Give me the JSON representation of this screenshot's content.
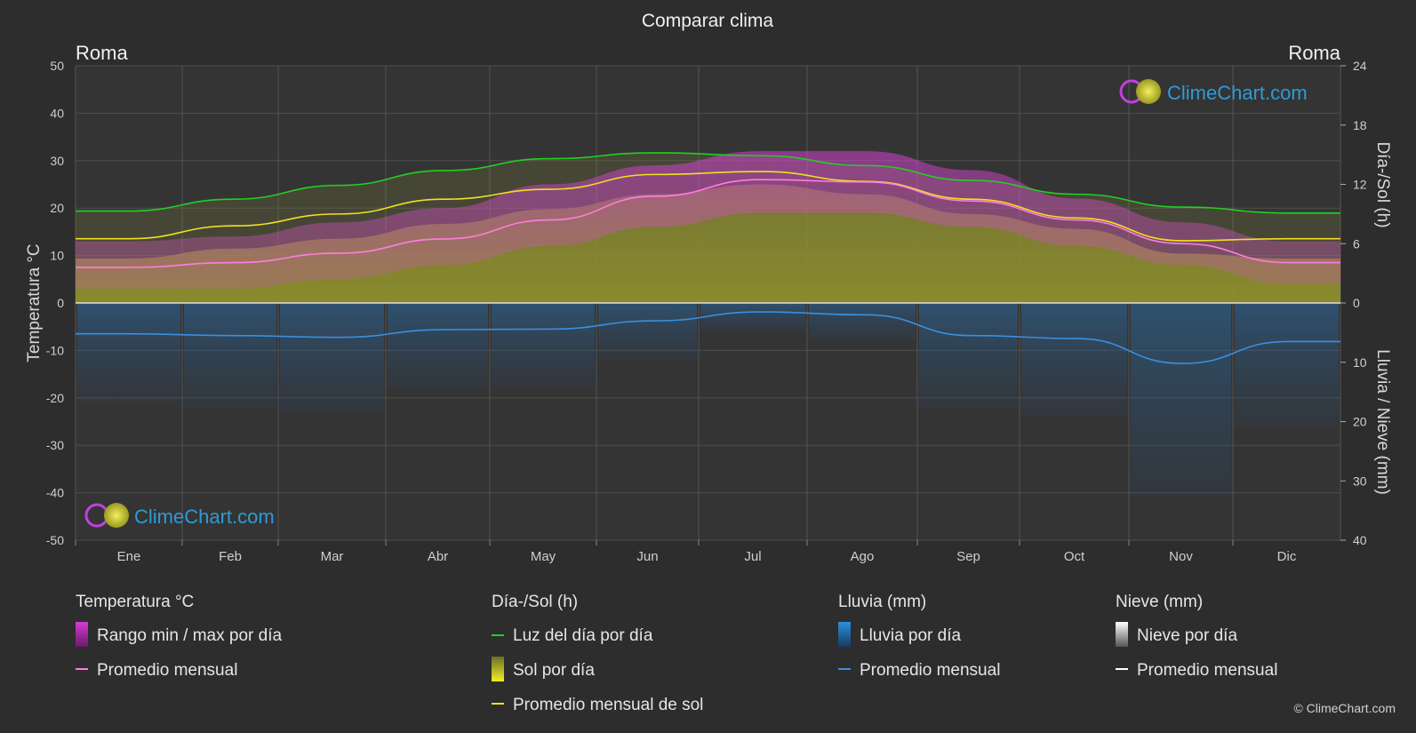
{
  "title": "Comparar clima",
  "city_left": "Roma",
  "city_right": "Roma",
  "copyright": "© ClimeChart.com",
  "logo_text": "ClimeChart.com",
  "colors": {
    "background": "#2d2d2d",
    "temp_range": "#d63bd6",
    "temp_avg": "#ff7de0",
    "daylight": "#22d022",
    "sunshine": "#b4b42a",
    "sun_avg": "#f0e020",
    "rain": "#2a78c0",
    "rain_avg": "#3a8fe0",
    "snow": "#cfcfcf",
    "snow_avg": "#ffffff",
    "logo": "#2e9bd6"
  },
  "chart_data": {
    "type": "area",
    "categories": [
      "Ene",
      "Feb",
      "Mar",
      "Abr",
      "May",
      "Jun",
      "Jul",
      "Ago",
      "Sep",
      "Oct",
      "Nov",
      "Dic"
    ],
    "y_left": {
      "label": "Temperatura °C",
      "range": [
        -50,
        50
      ],
      "ticks": [
        50,
        40,
        30,
        20,
        10,
        0,
        -10,
        -20,
        -30,
        -40,
        -50
      ]
    },
    "y_right_top": {
      "label": "Día-/Sol (h)",
      "range": [
        0,
        24
      ],
      "ticks": [
        24,
        18,
        12,
        6,
        0
      ]
    },
    "y_right_bottom": {
      "label": "Lluvia / Nieve (mm)",
      "range": [
        0,
        40
      ],
      "ticks": [
        0,
        10,
        20,
        30,
        40
      ]
    },
    "grid": true,
    "series": [
      {
        "name": "Rango min / max por día",
        "unit": "°C",
        "min": [
          3,
          3,
          5,
          8,
          12,
          16,
          19,
          19,
          16,
          12,
          8,
          4
        ],
        "max": [
          13,
          14,
          17,
          20,
          25,
          29,
          32,
          32,
          28,
          22,
          17,
          13
        ]
      },
      {
        "name": "Promedio mensual",
        "unit": "°C",
        "values": [
          7.5,
          8.5,
          10.5,
          13.5,
          17.5,
          22.5,
          26,
          25.5,
          21.5,
          17.5,
          12.5,
          8.5
        ]
      },
      {
        "name": "Luz del día por día",
        "unit": "h",
        "values": [
          9.3,
          10.5,
          11.9,
          13.4,
          14.6,
          15.2,
          14.9,
          13.9,
          12.4,
          11.0,
          9.7,
          9.1
        ]
      },
      {
        "name": "Sol por día",
        "unit": "h",
        "values": [
          4.5,
          5.5,
          6.5,
          8.0,
          9.5,
          11.0,
          12.0,
          11.0,
          9.0,
          7.5,
          5.0,
          4.5
        ]
      },
      {
        "name": "Promedio mensual de sol",
        "unit": "h",
        "values": [
          6.5,
          7.8,
          9.0,
          10.5,
          11.5,
          13.0,
          13.3,
          12.3,
          10.5,
          8.6,
          6.3,
          6.5
        ]
      },
      {
        "name": "Lluvia por día",
        "unit": "mm",
        "values": [
          5.2,
          5.5,
          5.8,
          4.5,
          4.4,
          3.0,
          1.5,
          2.0,
          5.5,
          6.0,
          10.2,
          6.5
        ]
      },
      {
        "name": "Promedio mensual",
        "unit": "mm",
        "values": [
          5.2,
          5.5,
          5.8,
          4.5,
          4.4,
          3.0,
          1.5,
          2.0,
          5.5,
          6.0,
          10.2,
          6.5
        ]
      },
      {
        "name": "Nieve por día",
        "unit": "mm",
        "values": [
          0,
          0,
          0,
          0,
          0,
          0,
          0,
          0,
          0,
          0,
          0,
          0
        ]
      },
      {
        "name": "Promedio mensual",
        "unit": "mm",
        "values": [
          0,
          0,
          0,
          0,
          0,
          0,
          0,
          0,
          0,
          0,
          0,
          0
        ]
      }
    ]
  },
  "legend": {
    "temp": {
      "heading": "Temperatura °C",
      "items": [
        "Rango min / max por día",
        "Promedio mensual"
      ]
    },
    "sun": {
      "heading": "Día-/Sol (h)",
      "items": [
        "Luz del día por día",
        "Sol por día",
        "Promedio mensual de sol"
      ]
    },
    "rain": {
      "heading": "Lluvia (mm)",
      "items": [
        "Lluvia por día",
        "Promedio mensual"
      ]
    },
    "snow": {
      "heading": "Nieve (mm)",
      "items": [
        "Nieve por día",
        "Promedio mensual"
      ]
    }
  }
}
